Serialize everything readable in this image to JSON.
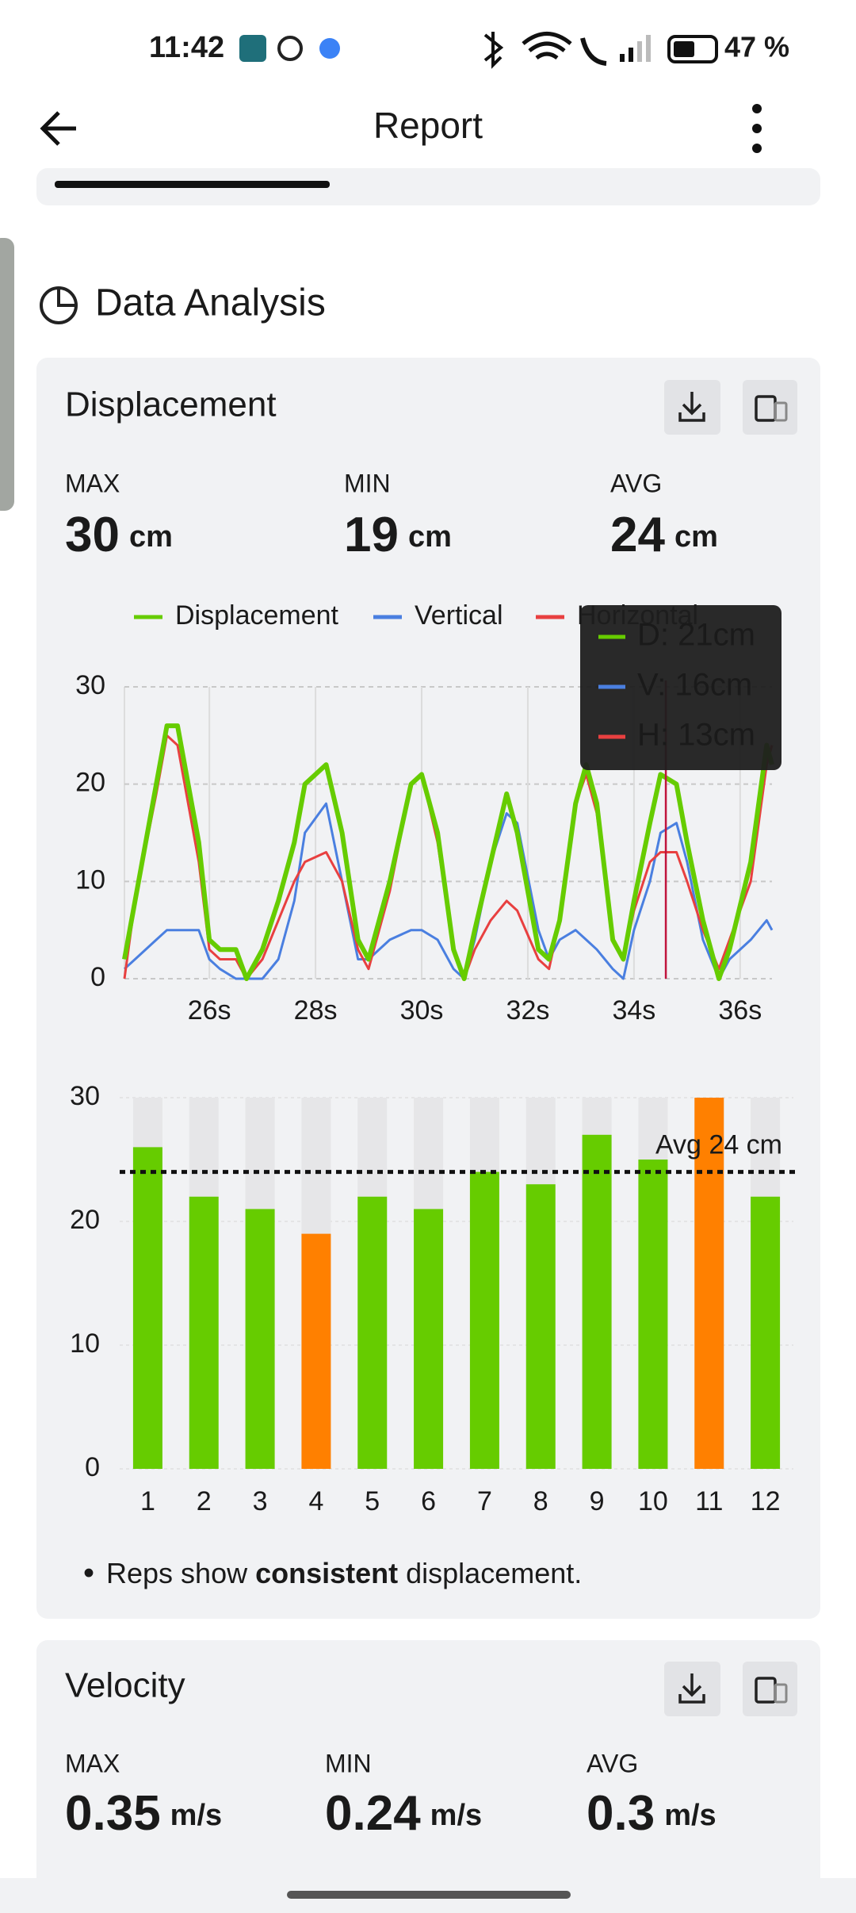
{
  "status_bar": {
    "time": "11:42",
    "battery": "47 %"
  },
  "header": {
    "title": "Report"
  },
  "section": {
    "title": "Data Analysis"
  },
  "displacement": {
    "title": "Displacement",
    "stats": [
      {
        "label": "MAX",
        "value": 30,
        "unit": "cm"
      },
      {
        "label": "MIN",
        "value": 19,
        "unit": "cm"
      },
      {
        "label": "AVG",
        "value": 24,
        "unit": "cm"
      }
    ],
    "line_chart": {
      "type": "line",
      "x": [
        24.4,
        24.6,
        25.0,
        25.2,
        25.4,
        25.8,
        26.0,
        26.2,
        26.5,
        26.7,
        27.0,
        27.3,
        27.6,
        27.8,
        28.2,
        28.5,
        28.8,
        29.0,
        29.4,
        29.8,
        30.0,
        30.3,
        30.6,
        30.8,
        31.0,
        31.3,
        31.6,
        31.8,
        32.2,
        32.4,
        32.6,
        32.9,
        33.1,
        33.3,
        33.6,
        33.8,
        34.0,
        34.3,
        34.5,
        34.8,
        35.0,
        35.3,
        35.6,
        35.8,
        36.2,
        36.5,
        36.6
      ],
      "xlim": [
        24.4,
        36.6
      ],
      "xticks": [
        {
          "value": 26,
          "label": "26s"
        },
        {
          "value": 28,
          "label": "28s"
        },
        {
          "value": 30,
          "label": "30s"
        },
        {
          "value": 32,
          "label": "32s"
        },
        {
          "value": 34,
          "label": "34s"
        },
        {
          "value": 36,
          "label": "36s"
        }
      ],
      "ylim": [
        0,
        30
      ],
      "yticks": [
        0,
        10,
        20,
        30
      ],
      "grid": true,
      "series": [
        {
          "name": "Displacement",
          "color": "#66cc00",
          "values": [
            2,
            8,
            20,
            26,
            26,
            14,
            4,
            3,
            3,
            0,
            3,
            8,
            14,
            20,
            22,
            15,
            4,
            2,
            10,
            20,
            21,
            15,
            3,
            0,
            5,
            12,
            19,
            15,
            3,
            2,
            6,
            18,
            22,
            18,
            4,
            2,
            8,
            16,
            21,
            20,
            14,
            6,
            0,
            3,
            12,
            24,
            22
          ]
        },
        {
          "name": "Vertical",
          "color": "#4a7fe0",
          "values": [
            1,
            2,
            4,
            5,
            5,
            5,
            2,
            1,
            0,
            0,
            0,
            2,
            8,
            15,
            18,
            10,
            2,
            2,
            4,
            5,
            5,
            4,
            1,
            0,
            4,
            12,
            17,
            16,
            5,
            2,
            4,
            5,
            4,
            3,
            1,
            0,
            5,
            10,
            15,
            16,
            12,
            4,
            0,
            2,
            4,
            6,
            5
          ]
        },
        {
          "name": "Horizontal",
          "color": "#e84040",
          "values": [
            0,
            8,
            19,
            25,
            24,
            12,
            3,
            2,
            2,
            0,
            2,
            6,
            10,
            12,
            13,
            10,
            3,
            1,
            9,
            20,
            21,
            14,
            3,
            0,
            3,
            6,
            8,
            7,
            2,
            1,
            6,
            18,
            21,
            17,
            4,
            2,
            7,
            12,
            13,
            13,
            10,
            5,
            1,
            4,
            10,
            22,
            24
          ]
        }
      ],
      "cursor_x": 34.6,
      "tooltip": [
        "D: 21cm",
        "V: 16cm",
        "H: 13cm"
      ]
    },
    "bar_chart": {
      "type": "bar",
      "categories": [
        "1",
        "2",
        "3",
        "4",
        "5",
        "6",
        "7",
        "8",
        "9",
        "10",
        "11",
        "12"
      ],
      "values": [
        26,
        22,
        21,
        19,
        22,
        21,
        24,
        23,
        27,
        25,
        30,
        22
      ],
      "colors": [
        "#66cc00",
        "#66cc00",
        "#66cc00",
        "#ff8000",
        "#66cc00",
        "#66cc00",
        "#66cc00",
        "#66cc00",
        "#66cc00",
        "#66cc00",
        "#ff8000",
        "#66cc00"
      ],
      "ylim": [
        0,
        30
      ],
      "yticks": [
        0,
        10,
        20,
        30
      ],
      "average": 24,
      "average_label": "Avg 24 cm"
    },
    "note": {
      "parts": [
        "Reps show ",
        "consistent",
        " displacement."
      ]
    }
  },
  "velocity": {
    "title": "Velocity",
    "stats": [
      {
        "label": "MAX",
        "value": 0.35,
        "unit": "m/s"
      },
      {
        "label": "MIN",
        "value": 0.24,
        "unit": "m/s"
      },
      {
        "label": "AVG",
        "value": 0.3,
        "unit": "m/s"
      }
    ]
  }
}
